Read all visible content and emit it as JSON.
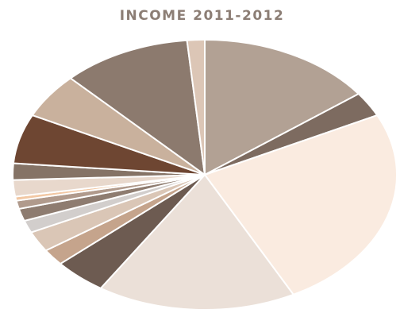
{
  "chart_data": {
    "type": "pie",
    "title": "INCOME 2011-2012",
    "slices": [
      {
        "value": 15.0,
        "color": "#b2a194"
      },
      {
        "value": 3.0,
        "color": "#7d6b60"
      },
      {
        "value": 25.0,
        "color": "#faebe0"
      },
      {
        "value": 17.0,
        "color": "#ebe0d8"
      },
      {
        "value": 4.5,
        "color": "#6d5b51"
      },
      {
        "value": 2.0,
        "color": "#c5a48c"
      },
      {
        "value": 2.5,
        "color": "#dac6b6"
      },
      {
        "value": 1.5,
        "color": "#d2cecc"
      },
      {
        "value": 1.5,
        "color": "#8e7c70"
      },
      {
        "value": 1.0,
        "color": "#b09a8c"
      },
      {
        "value": 0.5,
        "color": "#f2c8a4"
      },
      {
        "value": 2.0,
        "color": "#e8d8cc"
      },
      {
        "value": 2.0,
        "color": "#857366"
      },
      {
        "value": 6.0,
        "color": "#6e4632"
      },
      {
        "value": 5.5,
        "color": "#c9b19d"
      },
      {
        "value": 11.0,
        "color": "#8c7a6e"
      },
      {
        "value": 1.5,
        "color": "#dcc6b6"
      }
    ]
  }
}
